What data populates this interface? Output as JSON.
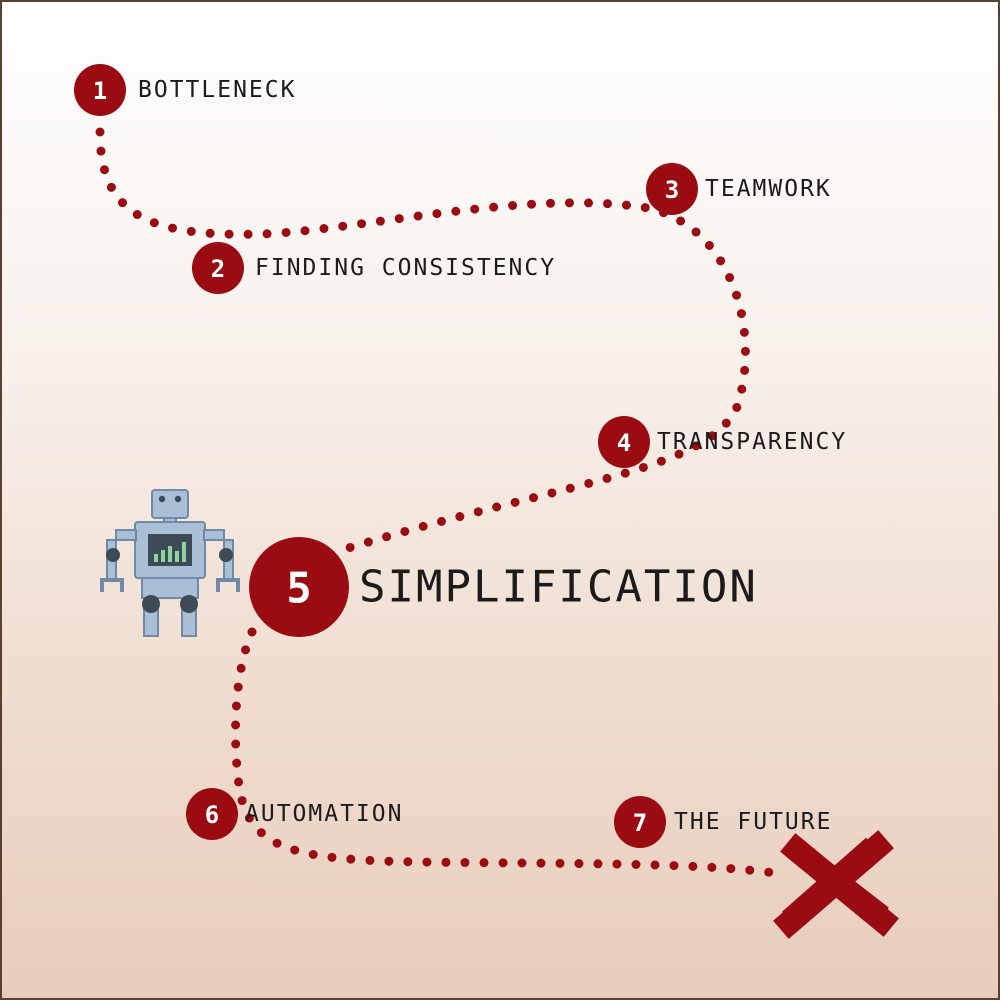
{
  "colors": {
    "accent": "#9b0b12",
    "text": "#1b1b1b",
    "robot_body": "#a9bfd6",
    "robot_outline": "#6f89a6",
    "robot_screen": "#3d4b56",
    "robot_bars": "#8fd49a"
  },
  "steps": [
    {
      "number": "1",
      "label": "BOTTLENECK"
    },
    {
      "number": "2",
      "label": "FINDING CONSISTENCY"
    },
    {
      "number": "3",
      "label": "TEAMWORK"
    },
    {
      "number": "4",
      "label": "TRANSPARENCY"
    },
    {
      "number": "5",
      "label": "SIMPLIFICATION"
    },
    {
      "number": "6",
      "label": "AUTOMATION"
    },
    {
      "number": "7",
      "label": "THE FUTURE"
    }
  ],
  "icons": {
    "robot": "robot-icon",
    "destination": "x-mark-icon"
  }
}
